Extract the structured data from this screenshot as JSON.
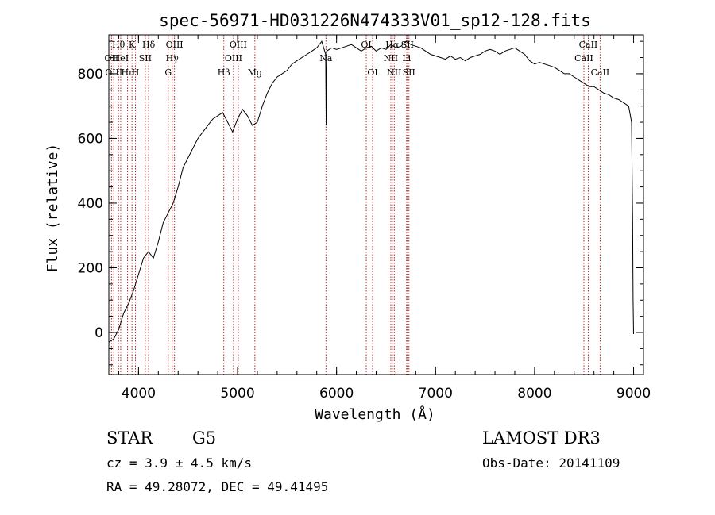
{
  "chart_data": {
    "type": "line",
    "title": "spec-56971-HD031226N474333V01_sp12-128.fits",
    "xlabel": "Wavelength (Å)",
    "ylabel": "Flux (relative)",
    "xlim": [
      3700,
      9100
    ],
    "ylim": [
      -130,
      920
    ],
    "x_ticks": [
      4000,
      5000,
      6000,
      7000,
      8000,
      9000
    ],
    "x_tick_labels": [
      "4000",
      "5000",
      "6000",
      "7000",
      "8000",
      "9000"
    ],
    "y_ticks": [
      0,
      200,
      400,
      600,
      800
    ],
    "y_tick_labels": [
      "0",
      "200",
      "400",
      "600",
      "800"
    ],
    "grid": false,
    "series": [
      {
        "name": "flux",
        "x": [
          3700,
          3750,
          3800,
          3850,
          3900,
          3950,
          4000,
          4050,
          4100,
          4150,
          4200,
          4250,
          4300,
          4350,
          4400,
          4450,
          4500,
          4550,
          4600,
          4650,
          4700,
          4750,
          4800,
          4850,
          4900,
          4950,
          5000,
          5050,
          5100,
          5150,
          5200,
          5250,
          5300,
          5350,
          5400,
          5450,
          5500,
          5550,
          5600,
          5650,
          5700,
          5750,
          5800,
          5850,
          5890,
          5895,
          5900,
          5950,
          6000,
          6050,
          6100,
          6150,
          6200,
          6250,
          6300,
          6350,
          6400,
          6450,
          6500,
          6550,
          6600,
          6650,
          6700,
          6750,
          6800,
          6850,
          6900,
          6950,
          7000,
          7050,
          7100,
          7150,
          7200,
          7250,
          7300,
          7350,
          7400,
          7450,
          7500,
          7550,
          7600,
          7650,
          7700,
          7750,
          7800,
          7850,
          7900,
          7950,
          8000,
          8050,
          8100,
          8150,
          8200,
          8250,
          8300,
          8350,
          8400,
          8450,
          8500,
          8550,
          8600,
          8650,
          8700,
          8750,
          8800,
          8850,
          8900,
          8950,
          8980,
          8990,
          8995,
          9000
        ],
        "values": [
          -30,
          -20,
          10,
          60,
          90,
          130,
          180,
          230,
          250,
          230,
          280,
          340,
          370,
          400,
          450,
          510,
          540,
          570,
          600,
          620,
          640,
          660,
          670,
          680,
          650,
          620,
          660,
          690,
          670,
          640,
          650,
          700,
          740,
          770,
          790,
          800,
          810,
          830,
          840,
          850,
          860,
          870,
          880,
          900,
          860,
          640,
          870,
          880,
          875,
          880,
          885,
          890,
          880,
          870,
          880,
          885,
          870,
          880,
          875,
          890,
          880,
          885,
          900,
          890,
          885,
          880,
          870,
          860,
          855,
          850,
          845,
          855,
          845,
          850,
          840,
          850,
          855,
          860,
          870,
          875,
          870,
          860,
          870,
          875,
          880,
          870,
          860,
          840,
          830,
          835,
          830,
          825,
          820,
          810,
          800,
          800,
          790,
          780,
          770,
          760,
          760,
          750,
          740,
          735,
          725,
          720,
          710,
          700,
          650,
          350,
          100,
          -5
        ]
      }
    ],
    "line_markers": [
      {
        "wl": 3727,
        "labels": [
          "OII"
        ],
        "row": 1
      },
      {
        "wl": 3750,
        "labels": [
          "OIII"
        ],
        "row": 2
      },
      {
        "wl": 3798,
        "labels": [
          "Hθ"
        ],
        "row": 0
      },
      {
        "wl": 3820,
        "labels": [
          "HeI"
        ],
        "row": 1
      },
      {
        "wl": 3889,
        "labels": [
          "Hη"
        ],
        "row": 2
      },
      {
        "wl": 3934,
        "labels": [
          "K"
        ],
        "row": 0
      },
      {
        "wl": 3969,
        "labels": [
          "H"
        ],
        "row": 2
      },
      {
        "wl": 4068,
        "labels": [
          "SII"
        ],
        "row": 1
      },
      {
        "wl": 4102,
        "labels": [
          "Hδ"
        ],
        "row": 0
      },
      {
        "wl": 4300,
        "labels": [
          "G"
        ],
        "row": 2
      },
      {
        "wl": 4340,
        "labels": [
          "Hγ"
        ],
        "row": 1
      },
      {
        "wl": 4363,
        "labels": [
          "OIII"
        ],
        "row": 0
      },
      {
        "wl": 4861,
        "labels": [
          "Hβ"
        ],
        "row": 2
      },
      {
        "wl": 4959,
        "labels": [
          "OIII"
        ],
        "row": 1
      },
      {
        "wl": 5007,
        "labels": [
          "OIII"
        ],
        "row": 0
      },
      {
        "wl": 5175,
        "labels": [
          "Mg"
        ],
        "row": 2
      },
      {
        "wl": 5893,
        "labels": [
          "Na"
        ],
        "row": 1
      },
      {
        "wl": 6300,
        "labels": [
          "OI"
        ],
        "row": 0
      },
      {
        "wl": 6364,
        "labels": [
          "OI"
        ],
        "row": 2
      },
      {
        "wl": 6548,
        "labels": [
          "NII"
        ],
        "row": 1
      },
      {
        "wl": 6563,
        "labels": [
          "Hα"
        ],
        "row": 0
      },
      {
        "wl": 6583,
        "labels": [
          "NII"
        ],
        "row": 2
      },
      {
        "wl": 6707,
        "labels": [
          "Li"
        ],
        "row": 1
      },
      {
        "wl": 6716,
        "labels": [
          "SII"
        ],
        "row": 0
      },
      {
        "wl": 6731,
        "labels": [
          "SII"
        ],
        "row": 2
      },
      {
        "wl": 8498,
        "labels": [
          "CaII"
        ],
        "row": 1
      },
      {
        "wl": 8542,
        "labels": [
          "CaII"
        ],
        "row": 0
      },
      {
        "wl": 8662,
        "labels": [
          "CaII"
        ],
        "row": 2
      }
    ],
    "colors": {
      "spectrum": "#000000",
      "markers": "#b22222"
    }
  },
  "info": {
    "object_class": "STAR",
    "subclass": "G5",
    "survey": "LAMOST DR3",
    "redshift": "cz =  3.9 ± 4.5 km/s",
    "obs_date": "Obs-Date: 20141109",
    "coords": "RA =  49.28072, DEC =  49.41495"
  }
}
